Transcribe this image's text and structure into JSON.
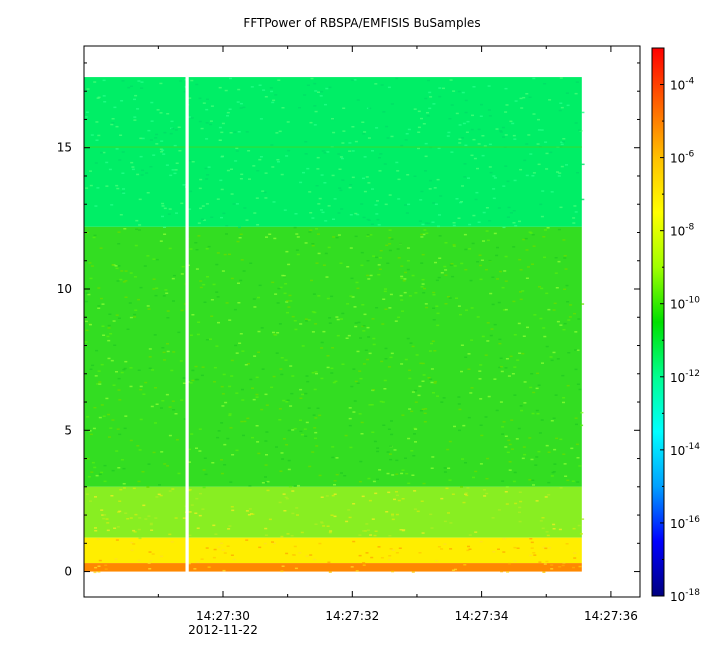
{
  "chart_data": {
    "type": "heatmap",
    "title": "FFTPower of RBSPA/EMFISIS  BuSamples",
    "xlabel": "",
    "ylabel": "",
    "x_ticks": [
      "14:27:30",
      "14:27:32",
      "14:27:34",
      "14:27:36"
    ],
    "x_tick_sublabel": "2012-11-22",
    "x_range_seconds": [
      27.85,
      36.45
    ],
    "x_data_range_seconds": [
      27.85,
      35.55
    ],
    "x_gap_seconds": [
      29.42,
      29.47
    ],
    "y_ticks": [
      0,
      5,
      10,
      15
    ],
    "ylim": [
      -0.9,
      18.6
    ],
    "y_data_range": [
      0,
      17.5
    ],
    "colorbar": {
      "scale": "log",
      "range": [
        1e-18,
        0.001
      ],
      "tick_base": "10",
      "tick_exponents": [
        "-4",
        "-6",
        "-8",
        "-10",
        "-12",
        "-14",
        "-16",
        "-18"
      ],
      "colors": [
        "#00007f",
        "#0000ff",
        "#00a0ff",
        "#00ffff",
        "#00ff90",
        "#00e000",
        "#a0ff00",
        "#ffff00",
        "#ffc000",
        "#ff6000",
        "#ff0000"
      ]
    },
    "bands": [
      {
        "y_from": 12.2,
        "y_to": 17.5,
        "level": "1e-13",
        "color": "#00ee66"
      },
      {
        "y_from": 3.0,
        "y_to": 12.2,
        "level": "1e-11",
        "color": "#33dd22"
      },
      {
        "y_from": 1.2,
        "y_to": 3.0,
        "level": "1e-10",
        "color": "#88ee22"
      },
      {
        "y_from": 0.3,
        "y_to": 1.2,
        "level": "1e-8",
        "color": "#ffee00"
      },
      {
        "y_from": 0.0,
        "y_to": 0.3,
        "level": "1e-6",
        "color": "#ff8800"
      }
    ]
  }
}
